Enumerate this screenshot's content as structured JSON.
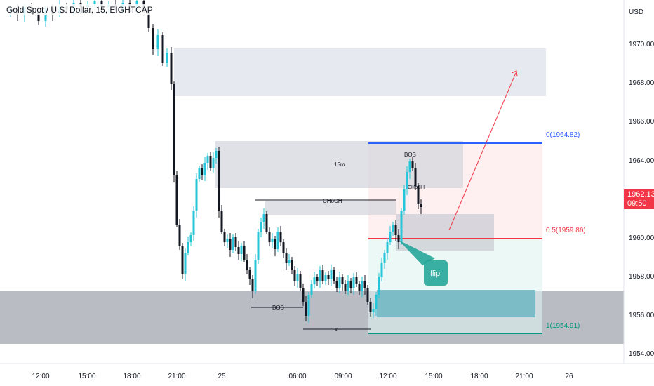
{
  "header": {
    "title": "Gold Spot / U.S. Dollar, 15, EIGHTCAP"
  },
  "axis": {
    "currency": "USD",
    "y_ticks": [
      "1970.00",
      "1968.00",
      "1966.00",
      "1964.00",
      "1962.00",
      "1960.00",
      "1958.00",
      "1956.00",
      "1954.00"
    ],
    "x_ticks": [
      "12:00",
      "15:00",
      "18:00",
      "21:00",
      "25",
      "06:00",
      "09:00",
      "12:00",
      "15:00",
      "18:00",
      "21:00",
      "26"
    ]
  },
  "current_price": {
    "price": "1962.13",
    "countdown": "09:50",
    "color": "#f23645"
  },
  "fib": {
    "level_0": "0(1964.82)",
    "level_05": "0.5(1959.86)",
    "level_1": "1(1954.91)",
    "color_0": "#2962ff",
    "color_05": "#f23645",
    "color_1": "#089981"
  },
  "annotations": {
    "choch": "CHoCH",
    "bos_left": "BOS",
    "bos_top": "BOS",
    "choch_small": "CHoCH",
    "x_mark": "x",
    "tf_label": "15m",
    "flip": "flip"
  },
  "colors": {
    "bull": "#26c6da",
    "bear": "#131722",
    "zone": "#d1d4dc",
    "demand": "#787b86"
  }
}
